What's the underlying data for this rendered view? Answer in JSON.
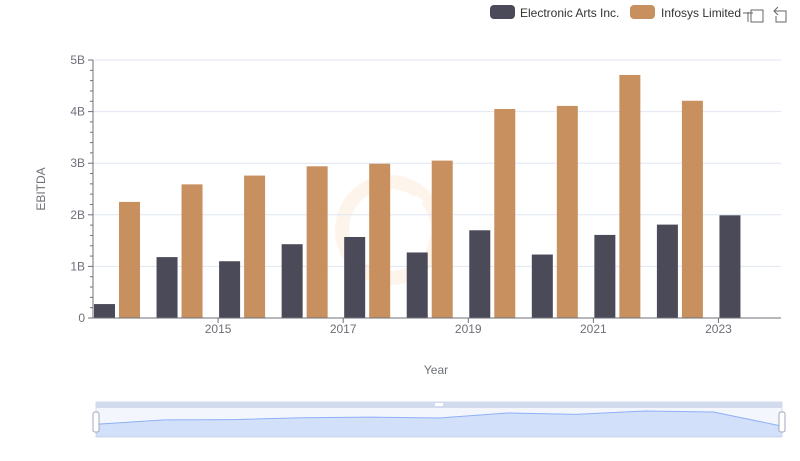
{
  "legend": {
    "items": [
      {
        "label": "Electronic Arts Inc.",
        "color": "#4a4a58"
      },
      {
        "label": "Infosys Limited",
        "color": "#c8905e"
      }
    ]
  },
  "toolbox": {
    "icons": [
      "zoom-icon",
      "restore-icon"
    ]
  },
  "chart_data": {
    "type": "bar",
    "x": [
      2014,
      2015,
      2016,
      2017,
      2018,
      2019,
      2020,
      2021,
      2022,
      2023,
      2024
    ],
    "xtick_labels": [
      "2015",
      "2017",
      "2019",
      "2021",
      "2023"
    ],
    "xtick_values": [
      2015,
      2017,
      2019,
      2021,
      2023
    ],
    "ytick_labels": [
      "0",
      "1B",
      "2B",
      "3B",
      "4B",
      "5B"
    ],
    "ytick_values": [
      0,
      1000000000,
      2000000000,
      3000000000,
      4000000000,
      5000000000
    ],
    "series": [
      {
        "name": "Electronic Arts Inc.",
        "color": "#4a4a58",
        "values": [
          270000000,
          1180000000,
          1100000000,
          1430000000,
          1570000000,
          1270000000,
          1700000000,
          1230000000,
          1610000000,
          1810000000,
          1990000000
        ]
      },
      {
        "name": "Infosys Limited",
        "color": "#c8905e",
        "values": [
          2250000000,
          2590000000,
          2760000000,
          2940000000,
          2990000000,
          3050000000,
          4050000000,
          4110000000,
          4710000000,
          4210000000,
          null
        ]
      }
    ],
    "xlabel": "Year",
    "ylabel": "EBITDA",
    "ylim": [
      0,
      5000000000
    ],
    "grid": true,
    "legend_position": "top-right",
    "datazoom": {
      "range": [
        0,
        100
      ],
      "color": "#aec5f5"
    }
  }
}
